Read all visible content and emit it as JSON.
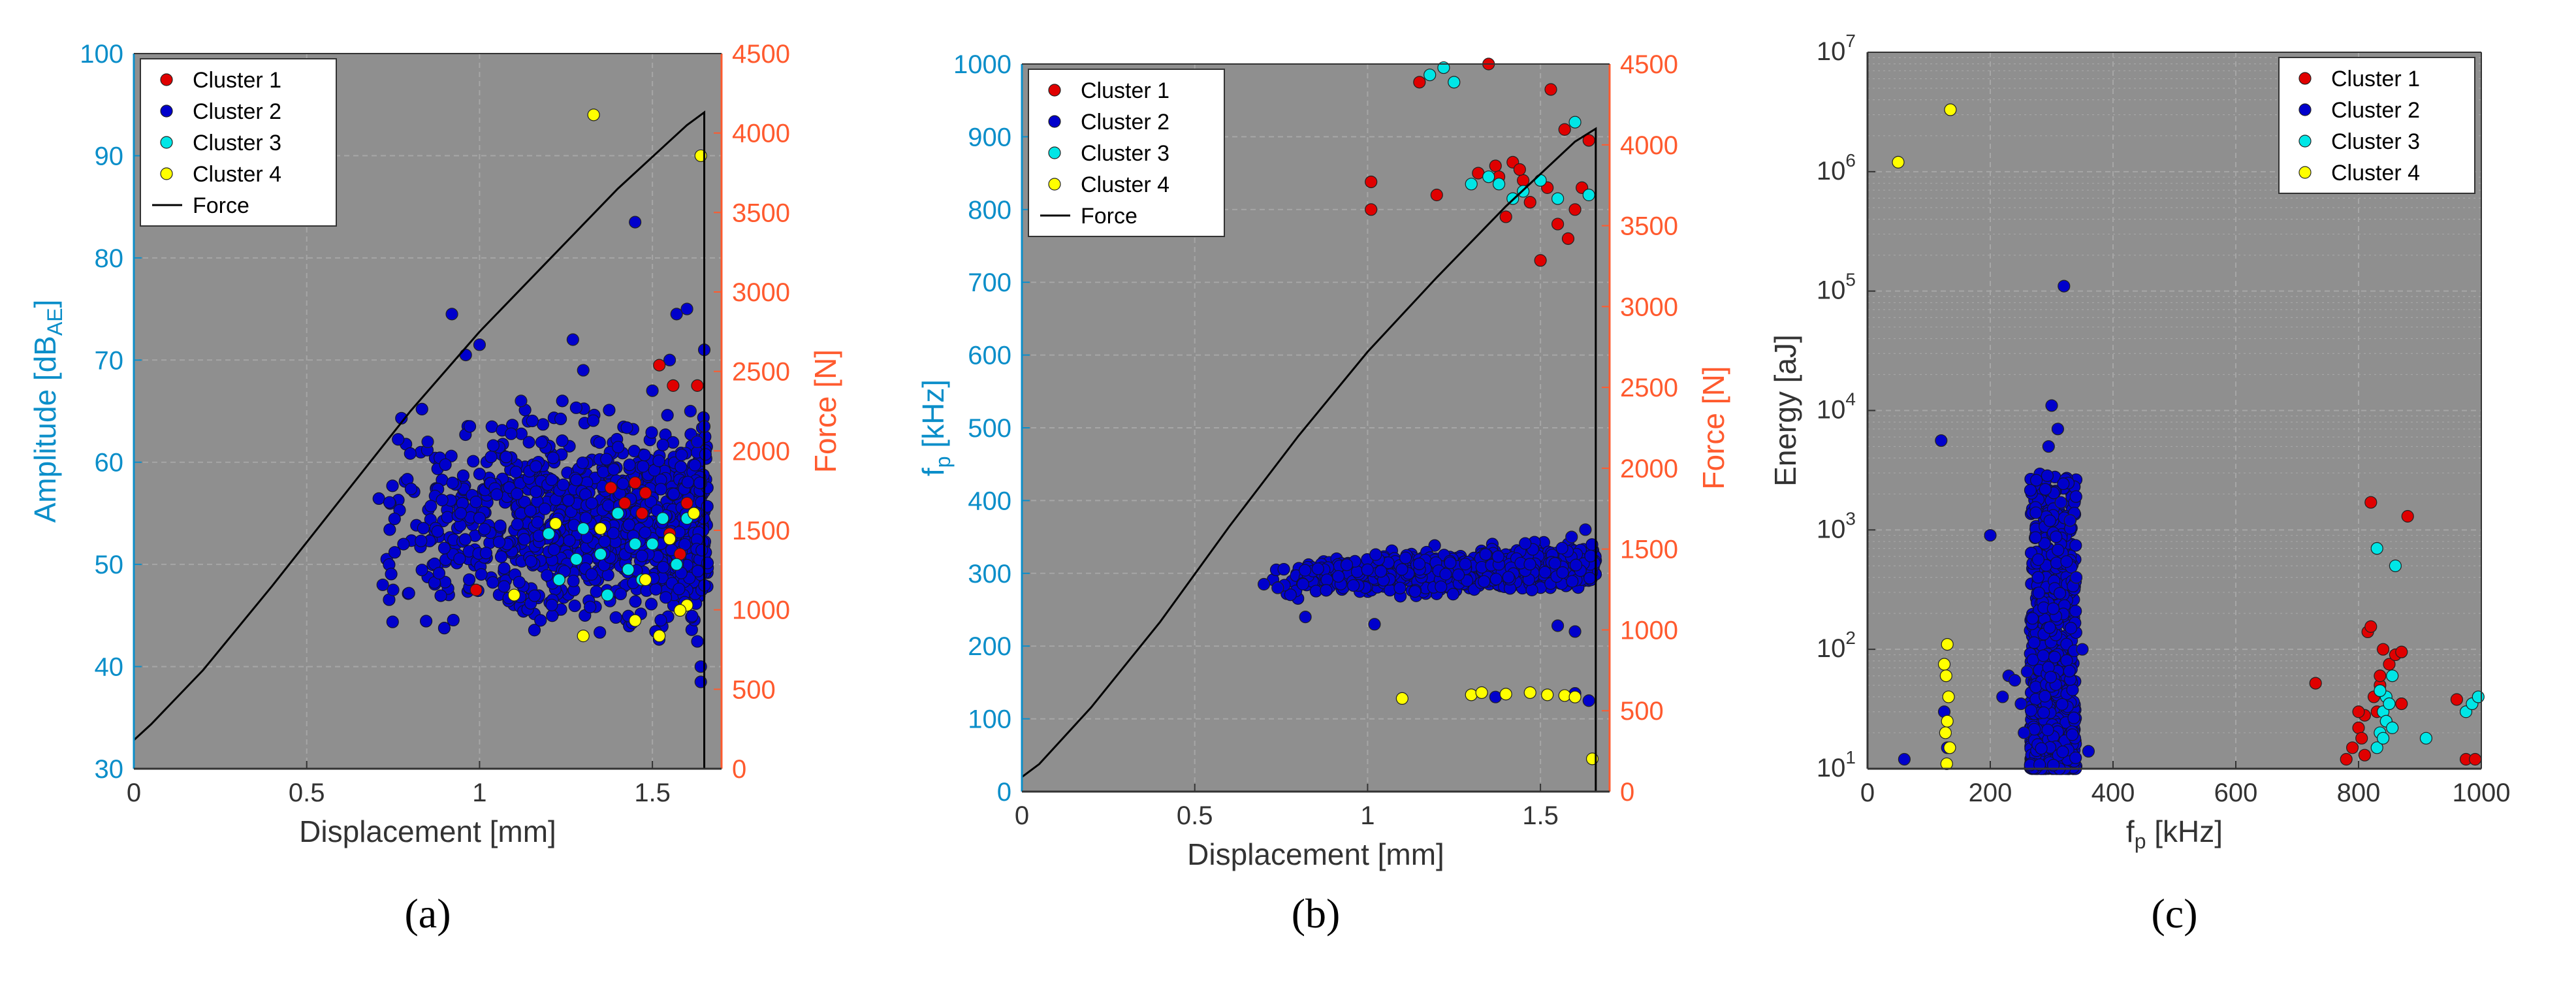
{
  "colors": {
    "plot_bg": "#8f8f8f",
    "grid": "#a6a6a6",
    "left_axis": "#0b8ec9",
    "right_axis": "#ff5a2e",
    "black_axis": "#333333",
    "force_line": "#000000",
    "cluster": [
      "#e00000",
      "#0000cc",
      "#00e6e6",
      "#ffff00"
    ]
  },
  "legend": {
    "clusters": [
      "Cluster 1",
      "Cluster 2",
      "Cluster 3",
      "Cluster 4"
    ],
    "force_label": "Force"
  },
  "captions": [
    "(a)",
    "(b)",
    "(c)"
  ],
  "chart_data": [
    {
      "type": "scatter",
      "panel": "a",
      "xlabel": "Displacement [mm]",
      "ylabel": "Amplitude [dB",
      "ylabel_sub": "AE",
      "ylabel_end": "]",
      "y2label": "Force [N]",
      "xlim": [
        0,
        1.7
      ],
      "ylim": [
        30,
        100
      ],
      "y2lim": [
        0,
        4500
      ],
      "xticks": [
        0,
        0.5,
        1,
        1.5
      ],
      "xtick_labels": [
        "0",
        "0.5",
        "1",
        "1.5"
      ],
      "yticks": [
        30,
        40,
        50,
        60,
        70,
        80,
        90,
        100
      ],
      "ytick_labels": [
        "30",
        "40",
        "50",
        "60",
        "70",
        "80",
        "90",
        "100"
      ],
      "y2ticks": [
        0,
        500,
        1000,
        1500,
        2000,
        2500,
        3000,
        3500,
        4000,
        4500
      ],
      "y2tick_labels": [
        "0",
        "500",
        "1000",
        "1500",
        "2000",
        "2500",
        "3000",
        "3500",
        "4000",
        "4500"
      ],
      "legend_position": "top-left",
      "force": {
        "x": [
          0,
          0.05,
          0.2,
          0.4,
          0.6,
          0.8,
          1.0,
          1.2,
          1.4,
          1.6,
          1.65,
          1.65
        ],
        "y": [
          180,
          280,
          620,
          1150,
          1700,
          2250,
          2750,
          3200,
          3650,
          4050,
          4130,
          0
        ]
      },
      "series": [
        {
          "name": "Cluster 1",
          "x": [
            0.99,
            1.38,
            1.42,
            1.45,
            1.48,
            1.52,
            1.56,
            1.6,
            1.63,
            1.47,
            1.55,
            1.58
          ],
          "y": [
            47.5,
            57.5,
            56,
            58,
            57,
            69.5,
            67.5,
            56,
            67.5,
            55,
            53,
            51
          ]
        },
        {
          "name": "Cluster 2",
          "cloud": {
            "x_range": [
              0.7,
              1.66
            ],
            "y_range": [
              42,
              66
            ],
            "count": 1100,
            "density": "increasing toward larger displacement"
          },
          "x": [
            0.92,
            0.96,
            1.0,
            1.27,
            1.45,
            1.57,
            1.6,
            1.65,
            1.65,
            1.64,
            1.64,
            0.72,
            0.75,
            1.12,
            1.3,
            1.55,
            0.85,
            1.5,
            1.63,
            1.61
          ],
          "y": [
            74.5,
            70.5,
            71.5,
            72,
            83.5,
            74.5,
            75,
            71,
            63.5,
            40,
            38.5,
            48,
            47.5,
            66,
            69,
            70,
            62,
            67,
            62,
            65
          ]
        },
        {
          "name": "Cluster 3",
          "x": [
            1.2,
            1.23,
            1.3,
            1.37,
            1.4,
            1.45,
            1.5,
            1.53,
            1.57,
            1.6,
            1.28,
            1.47,
            1.35,
            1.43
          ],
          "y": [
            53,
            48.5,
            53.5,
            47,
            55,
            52,
            52,
            54.5,
            50,
            54.5,
            50.5,
            48.5,
            51,
            49.5
          ]
        },
        {
          "name": "Cluster 4",
          "x": [
            1.33,
            1.64,
            1.1,
            1.35,
            1.48,
            1.52,
            1.55,
            1.6,
            1.62,
            1.45,
            1.3,
            1.58,
            1.22
          ],
          "y": [
            94,
            90,
            47,
            53.5,
            48.5,
            43,
            52.5,
            46,
            55,
            44.5,
            43,
            45.5,
            54
          ]
        }
      ]
    },
    {
      "type": "scatter",
      "panel": "b",
      "xlabel": "Displacement [mm]",
      "ylabel": "f",
      "ylabel_sub": "p",
      "ylabel_end": " [kHz]",
      "y2label": "Force [N]",
      "xlim": [
        0,
        1.7
      ],
      "ylim": [
        0,
        1000
      ],
      "y2lim": [
        0,
        4500
      ],
      "xticks": [
        0,
        0.5,
        1,
        1.5
      ],
      "xtick_labels": [
        "0",
        "0.5",
        "1",
        "1.5"
      ],
      "yticks": [
        0,
        100,
        200,
        300,
        400,
        500,
        600,
        700,
        800,
        900,
        1000
      ],
      "ytick_labels": [
        "0",
        "100",
        "200",
        "300",
        "400",
        "500",
        "600",
        "700",
        "800",
        "900",
        "1000"
      ],
      "y2ticks": [
        0,
        500,
        1000,
        1500,
        2000,
        2500,
        3000,
        3500,
        4000,
        4500
      ],
      "y2tick_labels": [
        "0",
        "500",
        "1000",
        "1500",
        "2000",
        "2500",
        "3000",
        "3500",
        "4000",
        "4500"
      ],
      "legend_position": "top-left",
      "force": {
        "x": [
          0,
          0.05,
          0.2,
          0.4,
          0.6,
          0.8,
          1.0,
          1.2,
          1.4,
          1.6,
          1.66,
          1.66
        ],
        "y": [
          90,
          170,
          520,
          1050,
          1640,
          2200,
          2720,
          3180,
          3620,
          4020,
          4100,
          0
        ]
      },
      "series": [
        {
          "name": "Cluster 1",
          "x": [
            1.01,
            1.01,
            1.15,
            1.2,
            1.35,
            1.53,
            1.57,
            1.64,
            1.32,
            1.37,
            1.42,
            1.45,
            1.5,
            1.55,
            1.6,
            1.47,
            1.4,
            1.52,
            1.58,
            1.62,
            1.44,
            1.38
          ],
          "y": [
            838,
            800,
            975,
            820,
            1000,
            965,
            910,
            895,
            850,
            860,
            865,
            840,
            730,
            780,
            800,
            810,
            790,
            830,
            760,
            830,
            855,
            845
          ]
        },
        {
          "name": "Cluster 2",
          "cloud": {
            "x_range": [
              0.72,
              1.66
            ],
            "y_range": [
              270,
              335
            ],
            "count": 1000,
            "density": "increasing toward larger displacement"
          },
          "x": [
            0.7,
            0.74,
            0.82,
            1.02,
            1.55,
            1.6,
            1.63,
            1.59,
            1.37,
            1.6,
            1.64
          ],
          "y": [
            285,
            280,
            240,
            230,
            228,
            220,
            360,
            350,
            130,
            135,
            125
          ]
        },
        {
          "name": "Cluster 3",
          "x": [
            1.18,
            1.22,
            1.25,
            1.3,
            1.35,
            1.38,
            1.42,
            1.5,
            1.55,
            1.6,
            1.64,
            1.45
          ],
          "y": [
            985,
            995,
            975,
            835,
            845,
            835,
            815,
            840,
            815,
            920,
            820,
            825
          ]
        },
        {
          "name": "Cluster 4",
          "x": [
            1.1,
            1.3,
            1.33,
            1.4,
            1.47,
            1.52,
            1.57,
            1.6,
            1.65
          ],
          "y": [
            128,
            133,
            136,
            134,
            136,
            133,
            132,
            130,
            45
          ]
        }
      ]
    },
    {
      "type": "scatter",
      "panel": "c",
      "xlabel": "f",
      "xlabel_sub": "p",
      "xlabel_end": " [kHz]",
      "ylabel": "Energy [aJ]",
      "xlim": [
        0,
        1000
      ],
      "ylim": [
        10,
        10000000
      ],
      "yscale": "log",
      "xticks": [
        0,
        200,
        400,
        600,
        800,
        1000
      ],
      "xtick_labels": [
        "0",
        "200",
        "400",
        "600",
        "800",
        "1000"
      ],
      "yticks": [
        1,
        2,
        3,
        4,
        5,
        6,
        7
      ],
      "ytick_base": "10",
      "legend_position": "top-right",
      "series": [
        {
          "name": "Cluster 1",
          "x": [
            730,
            780,
            790,
            800,
            805,
            810,
            815,
            820,
            825,
            830,
            835,
            840,
            850,
            860,
            870,
            880,
            960,
            975,
            990,
            820,
            835,
            845,
            810,
            800,
            870
          ],
          "y": [
            52,
            12,
            15,
            22,
            18,
            28,
            140,
            155,
            40,
            30,
            50,
            100,
            75,
            90,
            35,
            1300,
            38,
            12,
            12,
            1700,
            60,
            25,
            13,
            30,
            95
          ]
        },
        {
          "name": "Cluster 2",
          "cloud": {
            "x_range": [
              265,
              340
            ],
            "y_range": [
              10,
              3000
            ],
            "count": 900,
            "density": "log-dense near bottom"
          },
          "x": [
            60,
            120,
            125,
            130,
            200,
            220,
            230,
            240,
            250,
            255,
            260,
            300,
            310,
            320,
            330,
            340,
            350,
            360,
            315,
            295
          ],
          "y": [
            12,
            5600,
            30,
            15,
            900,
            40,
            60,
            55,
            35,
            20,
            65,
            11000,
            7000,
            110000,
            1200,
            400,
            100,
            14,
            1700,
            5000
          ]
        },
        {
          "name": "Cluster 3",
          "x": [
            830,
            835,
            840,
            845,
            850,
            855,
            860,
            830,
            845,
            840,
            910,
            975,
            985,
            995,
            855,
            835
          ],
          "y": [
            700,
            20,
            30,
            40,
            35,
            60,
            500,
            15,
            25,
            18,
            18,
            30,
            35,
            40,
            22,
            45
          ]
        },
        {
          "name": "Cluster 4",
          "x": [
            50,
            135,
            130,
            125,
            128,
            132,
            130,
            127,
            134,
            129
          ],
          "y": [
            1200000,
            3300000,
            110,
            75,
            60,
            40,
            25,
            20,
            15,
            11
          ]
        }
      ]
    }
  ]
}
